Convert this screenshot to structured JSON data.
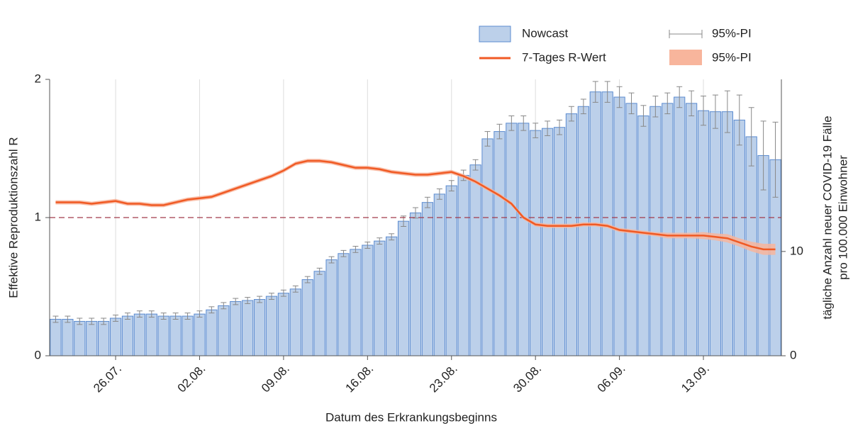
{
  "chart_data": {
    "type": "bar_line",
    "xlabel": "Datum des Erkrankungsbeginns",
    "ylabel": "Effektive Reproduktionszahl R",
    "y2label": [
      "tägliche Anzahl neuer COVID-19 Fälle",
      "pro 100.000 Einwohner"
    ],
    "categories": [
      null,
      null,
      null,
      null,
      null,
      "26.07.",
      null,
      null,
      null,
      null,
      null,
      null,
      "02.08.",
      null,
      null,
      null,
      null,
      null,
      null,
      "09.08.",
      null,
      null,
      null,
      null,
      null,
      null,
      "16.08.",
      null,
      null,
      null,
      null,
      null,
      null,
      "23.08.",
      null,
      null,
      null,
      null,
      null,
      null,
      "30.08.",
      null,
      null,
      null,
      null,
      null,
      null,
      "06.09.",
      null,
      null,
      null,
      null,
      null,
      null,
      "13.09.",
      null,
      null,
      null,
      null,
      null,
      null
    ],
    "ylim": [
      0,
      2
    ],
    "yticks": [
      0,
      1,
      2
    ],
    "y2lim": [
      0,
      26.5
    ],
    "y2ticks": [
      0,
      10
    ],
    "hline": 1,
    "hline_color": "#a23a4a",
    "grid": true,
    "series": [
      {
        "name": "Nowcast",
        "axis": "y2",
        "color": "#bcd0ea",
        "edge": "#5b8bd0",
        "values": [
          3.5,
          3.5,
          3.3,
          3.3,
          3.3,
          3.6,
          3.8,
          4.0,
          4.0,
          3.8,
          3.8,
          3.8,
          4.0,
          4.4,
          4.8,
          5.2,
          5.3,
          5.4,
          5.7,
          6.0,
          6.4,
          7.3,
          8.1,
          9.2,
          9.8,
          10.2,
          10.6,
          11.0,
          11.4,
          12.9,
          13.7,
          14.7,
          15.5,
          16.3,
          17.3,
          18.3,
          20.8,
          21.5,
          22.3,
          22.3,
          21.6,
          21.8,
          21.9,
          23.2,
          23.9,
          25.3,
          25.3,
          24.8,
          24.2,
          23.0,
          23.9,
          24.2,
          24.8,
          24.2,
          23.5,
          23.4,
          23.4,
          22.6,
          21.0,
          19.2,
          18.8
        ],
        "error": {
          "name": "95%-PI",
          "color": "#888888",
          "values": [
            0.3,
            0.3,
            0.3,
            0.3,
            0.3,
            0.3,
            0.3,
            0.3,
            0.3,
            0.3,
            0.3,
            0.3,
            0.3,
            0.3,
            0.3,
            0.3,
            0.3,
            0.3,
            0.3,
            0.3,
            0.3,
            0.3,
            0.3,
            0.3,
            0.3,
            0.3,
            0.3,
            0.3,
            0.3,
            0.5,
            0.5,
            0.5,
            0.5,
            0.5,
            0.5,
            0.5,
            0.7,
            0.7,
            0.7,
            0.7,
            0.7,
            0.7,
            0.7,
            0.7,
            0.7,
            1.0,
            1.0,
            1.0,
            1.0,
            1.0,
            1.0,
            1.0,
            1.0,
            1.2,
            1.4,
            1.6,
            2.0,
            2.4,
            2.8,
            3.3,
            3.6
          ]
        }
      },
      {
        "name": "7-Tages R-Wert",
        "color": "#f05a24",
        "values": [
          1.11,
          1.11,
          1.11,
          1.1,
          1.11,
          1.12,
          1.1,
          1.1,
          1.09,
          1.09,
          1.11,
          1.13,
          1.14,
          1.15,
          1.18,
          1.21,
          1.24,
          1.27,
          1.3,
          1.34,
          1.39,
          1.41,
          1.41,
          1.4,
          1.38,
          1.36,
          1.36,
          1.35,
          1.33,
          1.32,
          1.31,
          1.31,
          1.32,
          1.33,
          1.3,
          1.26,
          1.21,
          1.16,
          1.1,
          1.0,
          0.95,
          0.94,
          0.94,
          0.94,
          0.95,
          0.95,
          0.94,
          0.91,
          0.9,
          0.89,
          0.88,
          0.87,
          0.87,
          0.87,
          0.87,
          0.86,
          0.85,
          0.82,
          0.79,
          0.77,
          0.77
        ],
        "band": {
          "name": "95%-PI",
          "color": "#f8b59c",
          "values": [
            0.015,
            0.015,
            0.015,
            0.015,
            0.015,
            0.015,
            0.015,
            0.015,
            0.015,
            0.015,
            0.015,
            0.015,
            0.015,
            0.015,
            0.015,
            0.015,
            0.015,
            0.015,
            0.015,
            0.015,
            0.015,
            0.015,
            0.015,
            0.015,
            0.015,
            0.015,
            0.015,
            0.015,
            0.015,
            0.015,
            0.015,
            0.015,
            0.015,
            0.015,
            0.015,
            0.015,
            0.015,
            0.015,
            0.015,
            0.015,
            0.015,
            0.015,
            0.015,
            0.015,
            0.015,
            0.015,
            0.015,
            0.015,
            0.015,
            0.015,
            0.015,
            0.02,
            0.02,
            0.02,
            0.025,
            0.025,
            0.03,
            0.03,
            0.035,
            0.04,
            0.04
          ]
        }
      }
    ]
  }
}
